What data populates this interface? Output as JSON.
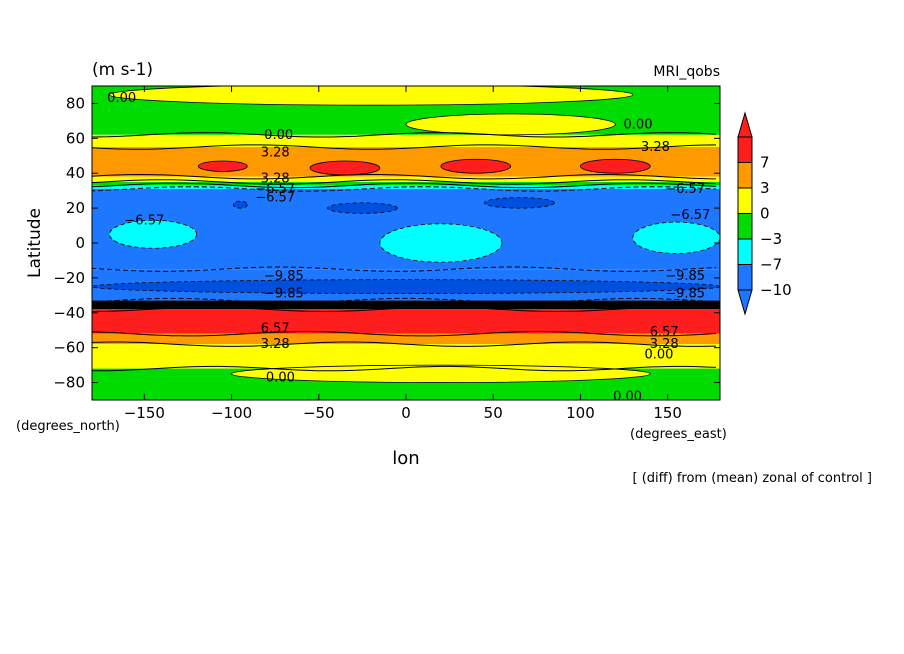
{
  "chart_data": {
    "type": "heatmap",
    "subtitle_units": "(m s-1)",
    "model_label": "MRI_qobs",
    "ylabel": "Latitude",
    "xlabel": "lon",
    "y_units_label": "(degrees_north)",
    "x_units_label": "(degrees_east)",
    "caption": "[ (diff) from (mean) zonal of control ]",
    "xlim": [
      -180,
      180
    ],
    "ylim": [
      -90,
      90
    ],
    "x_ticks": [
      {
        "value": -150,
        "label": "−150"
      },
      {
        "value": -100,
        "label": "−100"
      },
      {
        "value": -50,
        "label": "−50"
      },
      {
        "value": 0,
        "label": "0"
      },
      {
        "value": 50,
        "label": "50"
      },
      {
        "value": 100,
        "label": "100"
      },
      {
        "value": 150,
        "label": "150"
      }
    ],
    "y_ticks": [
      {
        "value": 80,
        "label": "80"
      },
      {
        "value": 60,
        "label": "60"
      },
      {
        "value": 40,
        "label": "40"
      },
      {
        "value": 20,
        "label": "20"
      },
      {
        "value": 0,
        "label": "0"
      },
      {
        "value": -20,
        "label": "−20"
      },
      {
        "value": -40,
        "label": "−40"
      },
      {
        "value": -60,
        "label": "−60"
      },
      {
        "value": -80,
        "label": "−80"
      }
    ],
    "colorbar": {
      "colors": [
        "#1e78ff",
        "#00ffff",
        "#00dc00",
        "#ffff00",
        "#ff9900",
        "#ff1e1e"
      ],
      "labels": [
        "7",
        "3",
        "0",
        "−3",
        "−7",
        "−10"
      ]
    },
    "bands": [
      {
        "lat_min": 62,
        "lat_max": 90,
        "color": "#00dc00"
      },
      {
        "lat_min": 55,
        "lat_max": 62,
        "color": "#ffff00"
      },
      {
        "lat_min": 38,
        "lat_max": 55,
        "color": "#ff9900"
      },
      {
        "lat_min": 35,
        "lat_max": 38,
        "color": "#ffff00"
      },
      {
        "lat_min": 33,
        "lat_max": 35,
        "color": "#00dc00"
      },
      {
        "lat_min": 31,
        "lat_max": 33,
        "color": "#00ffff"
      },
      {
        "lat_min": -15,
        "lat_max": 31,
        "color": "#1e78ff"
      },
      {
        "lat_min": -33,
        "lat_max": -15,
        "color": "#1e78ff"
      },
      {
        "lat_min": -38,
        "lat_max": -33,
        "color": "#000000"
      },
      {
        "lat_min": -52,
        "lat_max": -38,
        "color": "#ff1e1e"
      },
      {
        "lat_min": -58,
        "lat_max": -52,
        "color": "#ff9900"
      },
      {
        "lat_min": -72,
        "lat_max": -58,
        "color": "#ffff00"
      },
      {
        "lat_min": -90,
        "lat_max": -72,
        "color": "#00dc00"
      }
    ],
    "blobs": [
      {
        "lon": -105,
        "lat": 44,
        "rlon": 14,
        "rlat": 3,
        "color": "#ff1e1e"
      },
      {
        "lon": -35,
        "lat": 43,
        "rlon": 20,
        "rlat": 4,
        "color": "#ff1e1e"
      },
      {
        "lon": 40,
        "lat": 44,
        "rlon": 20,
        "rlat": 4,
        "color": "#ff1e1e"
      },
      {
        "lon": 120,
        "lat": 44,
        "rlon": 20,
        "rlat": 4,
        "color": "#ff1e1e"
      },
      {
        "lon": -145,
        "lat": 5,
        "rlon": 25,
        "rlat": 8,
        "color": "#00ffff"
      },
      {
        "lon": 20,
        "lat": 0,
        "rlon": 35,
        "rlat": 11,
        "color": "#00ffff"
      },
      {
        "lon": 155,
        "lat": 3,
        "rlon": 25,
        "rlat": 9,
        "color": "#00ffff"
      },
      {
        "lon": -95,
        "lat": 22,
        "rlon": 4,
        "rlat": 2,
        "color": "#0050e0"
      },
      {
        "lon": -25,
        "lat": 20,
        "rlon": 20,
        "rlat": 3,
        "color": "#0050e0"
      },
      {
        "lon": 65,
        "lat": 23,
        "rlon": 20,
        "rlat": 3,
        "color": "#0050e0"
      },
      {
        "lon": 0,
        "lat": -25,
        "rlon": 180,
        "rlat": 4,
        "color": "#0050e0"
      },
      {
        "lon": -20,
        "lat": 85,
        "rlon": 150,
        "rlat": 6,
        "color": "#ffff00"
      },
      {
        "lon": 60,
        "lat": 68,
        "rlon": 60,
        "rlat": 6,
        "color": "#ffff00"
      },
      {
        "lon": 20,
        "lat": -75,
        "rlon": 120,
        "rlat": 5,
        "color": "#ffff00"
      }
    ],
    "contour_labels": [
      {
        "lon": -163,
        "lat": 83,
        "text": "0.00"
      },
      {
        "lon": 133,
        "lat": 68,
        "text": "0.00"
      },
      {
        "lon": -73,
        "lat": 62,
        "text": "0.00"
      },
      {
        "lon": -75,
        "lat": 52,
        "text": "3.28"
      },
      {
        "lon": 143,
        "lat": 55,
        "text": "3.28"
      },
      {
        "lon": -75,
        "lat": 37,
        "text": "3.28"
      },
      {
        "lon": -75,
        "lat": 31,
        "text": "−6.57"
      },
      {
        "lon": -75,
        "lat": 26,
        "text": "−6.57"
      },
      {
        "lon": 160,
        "lat": 31,
        "text": "−6.57"
      },
      {
        "lon": -150,
        "lat": 13,
        "text": "−6.57"
      },
      {
        "lon": 163,
        "lat": 16,
        "text": "−6.57"
      },
      {
        "lon": -70,
        "lat": -19,
        "text": "−9.85"
      },
      {
        "lon": 160,
        "lat": -19,
        "text": "−9.85"
      },
      {
        "lon": -70,
        "lat": -29,
        "text": "−9.85"
      },
      {
        "lon": 160,
        "lat": -29,
        "text": "−9.85"
      },
      {
        "lon": -75,
        "lat": -49,
        "text": "6.57"
      },
      {
        "lon": 148,
        "lat": -51,
        "text": "6.57"
      },
      {
        "lon": -75,
        "lat": -58,
        "text": "3.28"
      },
      {
        "lon": 148,
        "lat": -58,
        "text": "3.28"
      },
      {
        "lon": 145,
        "lat": -64,
        "text": "0.00"
      },
      {
        "lon": -72,
        "lat": -77,
        "text": "0.00"
      },
      {
        "lon": 127,
        "lat": -88,
        "text": "0.00"
      }
    ]
  }
}
